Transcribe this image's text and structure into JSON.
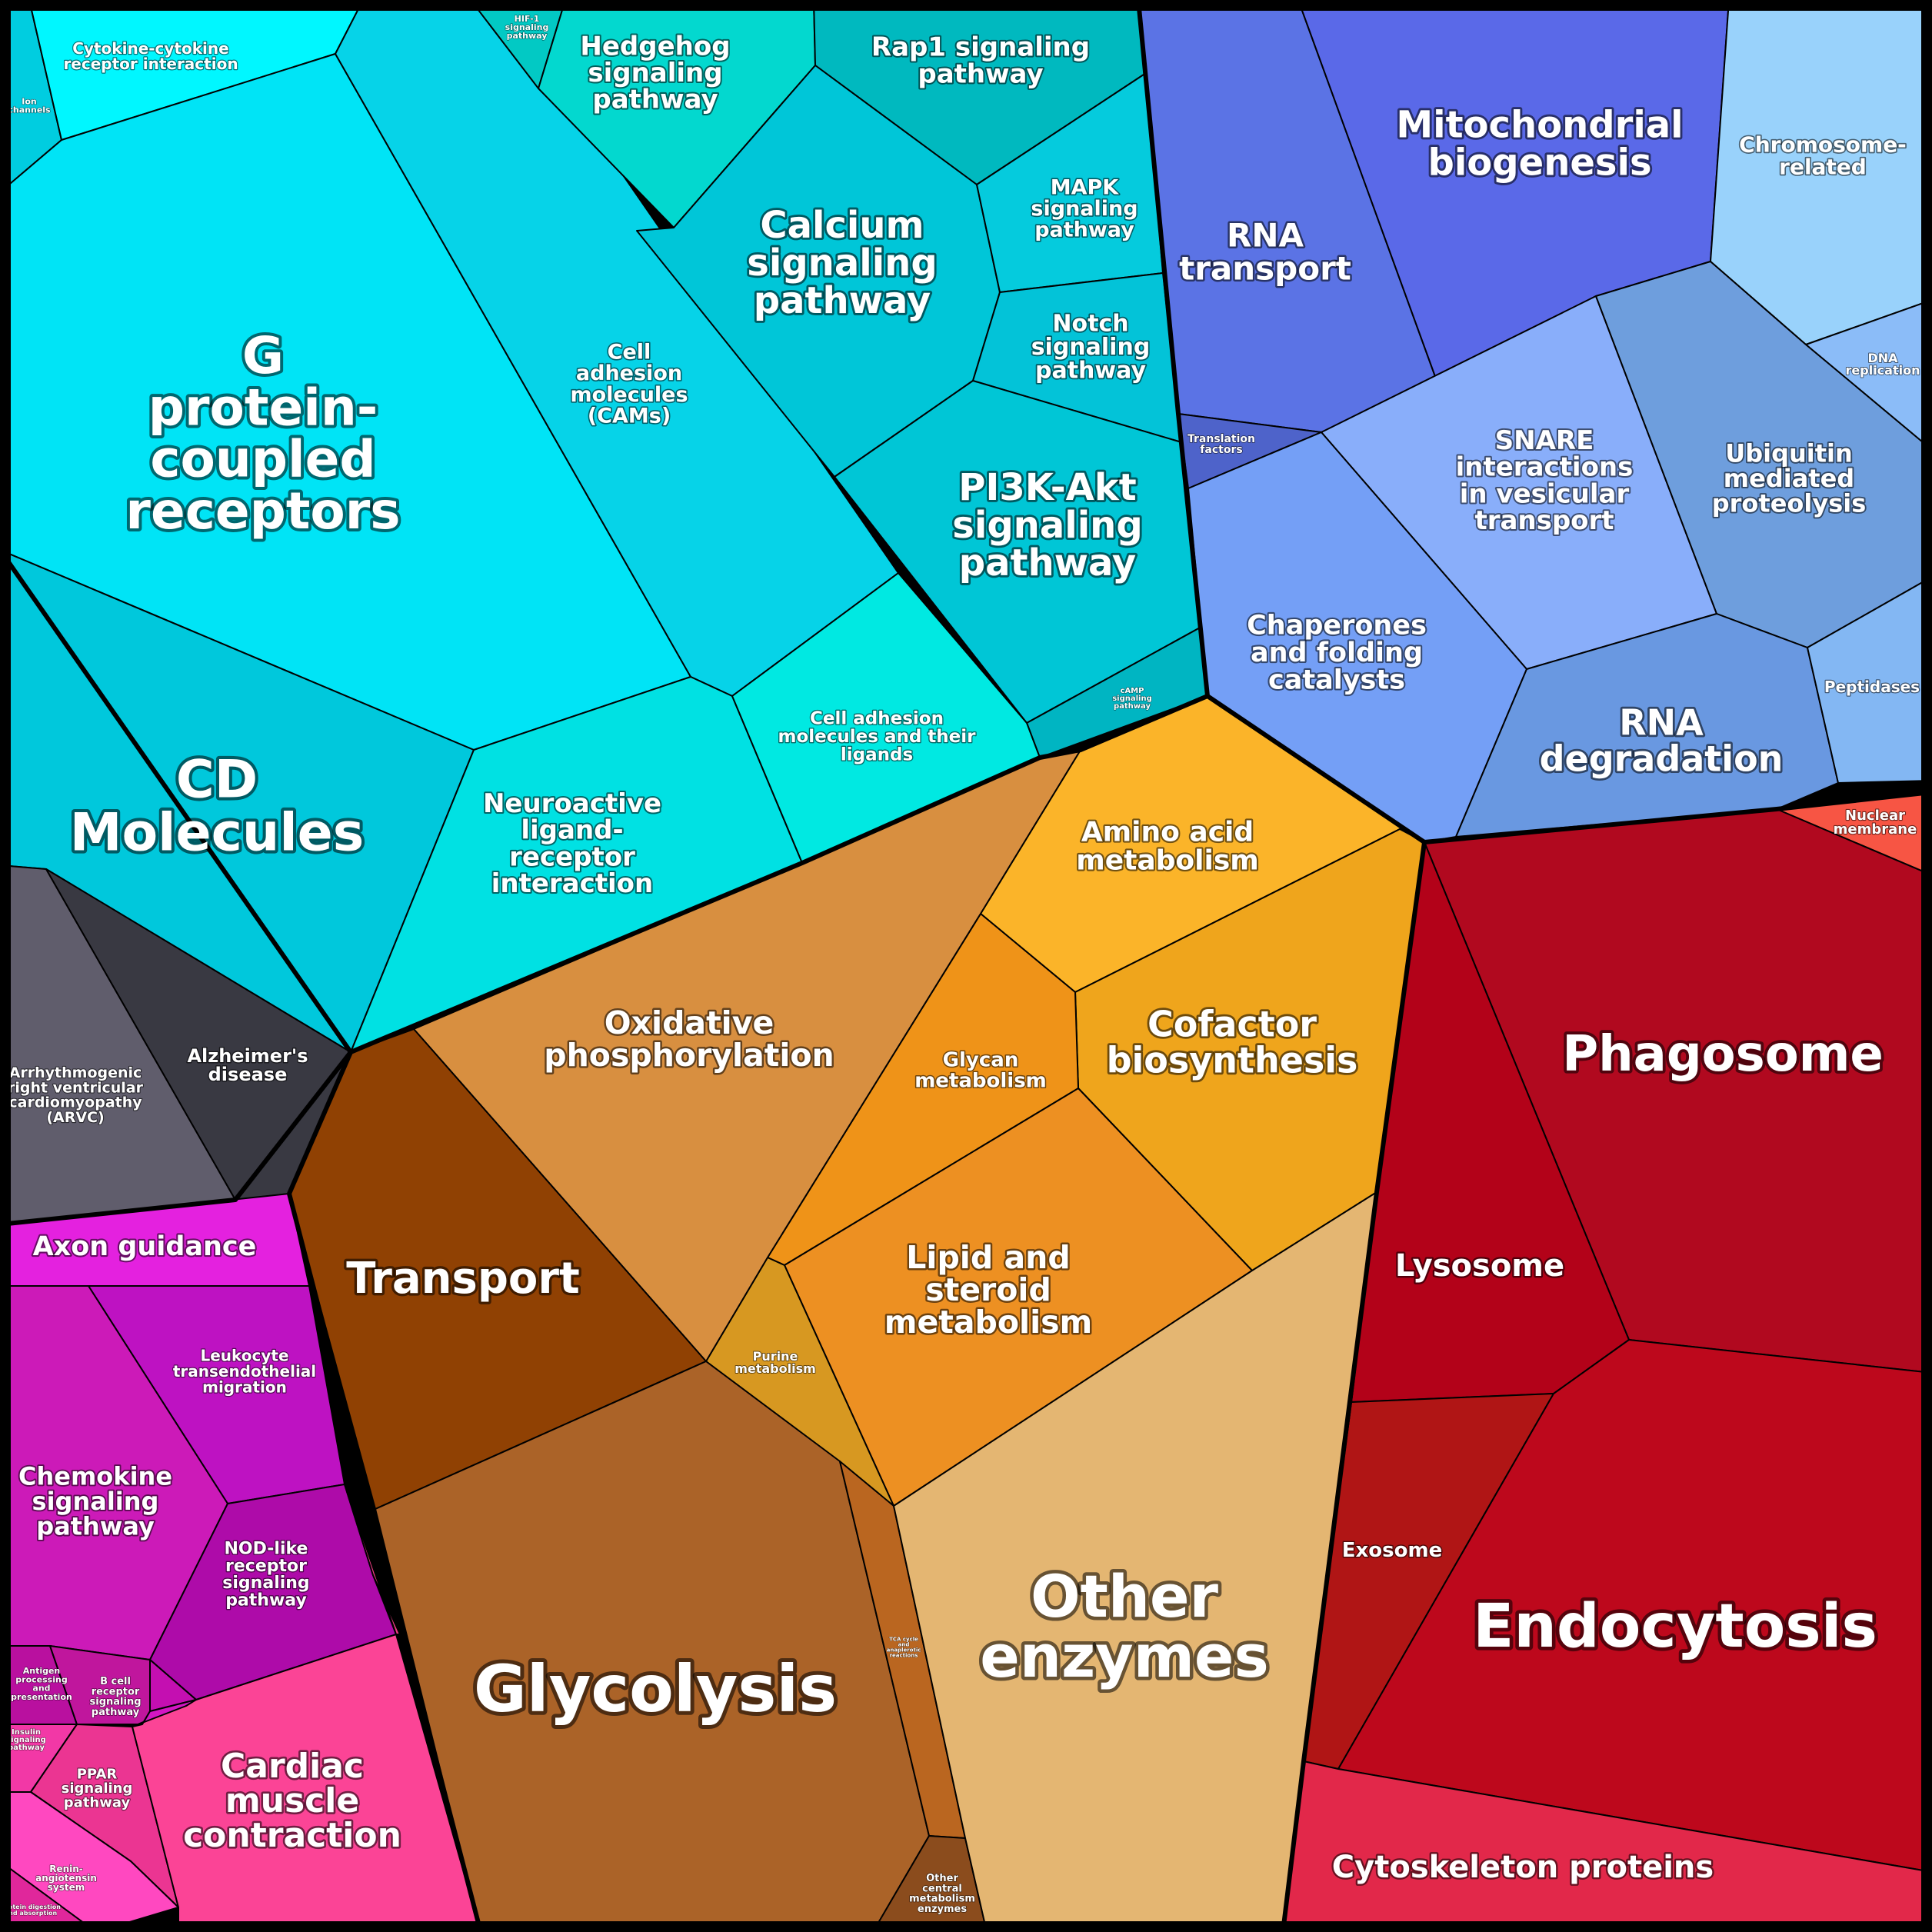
{
  "cells": [
    {
      "id": "ion-channels",
      "label": "Ion channels",
      "color": "#00cde0"
    },
    {
      "id": "cytokine",
      "label": "Cytokine-cytokine receptor interaction",
      "color": "#00f7ff"
    },
    {
      "id": "gpcr",
      "label": "G protein-coupled receptors",
      "color": "#00e4f6"
    },
    {
      "id": "cams",
      "label": "Cell adhesion molecules (CAMs)",
      "color": "#06d3e8"
    },
    {
      "id": "hif1",
      "label": "HIF-1 signaling pathway",
      "color": "#02c9c4"
    },
    {
      "id": "hedgehog",
      "label": "Hedgehog signaling pathway",
      "color": "#03d8cf"
    },
    {
      "id": "rap1",
      "label": "Rap1 signaling pathway",
      "color": "#00b9bf"
    },
    {
      "id": "calcium",
      "label": "Calcium signaling pathway",
      "color": "#00c6d8"
    },
    {
      "id": "mapk",
      "label": "MAPK signaling pathway",
      "color": "#05cbdd"
    },
    {
      "id": "notch",
      "label": "Notch signaling pathway",
      "color": "#03c3d8"
    },
    {
      "id": "pi3k",
      "label": "PI3K-Akt signaling pathway",
      "color": "#00c6d6"
    },
    {
      "id": "camp",
      "label": "cAMP signaling pathway",
      "color": "#00b5c2"
    },
    {
      "id": "cd",
      "label": "CD Molecules",
      "color": "#00c8dc"
    },
    {
      "id": "neuroactive",
      "label": "Neuroactive ligand-receptor interaction",
      "color": "#00e1e3"
    },
    {
      "id": "cam-ligands",
      "label": "Cell adhesion molecules and their ligands",
      "color": "#00e9e2"
    },
    {
      "id": "rna-transport",
      "label": "RNA transport",
      "color": "#5b73e5"
    },
    {
      "id": "mito",
      "label": "Mitochondrial biogenesis",
      "color": "#5a69e8"
    },
    {
      "id": "chromosome",
      "label": "Chromosome-related",
      "color": "#99d2fb"
    },
    {
      "id": "dna-rep",
      "label": "DNA replication",
      "color": "#8bbcf8"
    },
    {
      "id": "translation",
      "label": "Translation factors",
      "color": "#4e63ca"
    },
    {
      "id": "snare",
      "label": "SNARE interactions in vesicular transport",
      "color": "#89aefa"
    },
    {
      "id": "ubiquitin",
      "label": "Ubiquitin mediated proteolysis",
      "color": "#6e9edd"
    },
    {
      "id": "chaperones",
      "label": "Chaperones and folding catalysts",
      "color": "#749ff6"
    },
    {
      "id": "rna-deg",
      "label": "RNA degradation",
      "color": "#6998e1"
    },
    {
      "id": "peptidases",
      "label": "Peptidases",
      "color": "#83b7f3"
    },
    {
      "id": "nuclear",
      "label": "Nuclear membrane",
      "color": "#f75544"
    },
    {
      "id": "phagosome",
      "label": "Phagosome",
      "color": "#b1091f"
    },
    {
      "id": "lysosome",
      "label": "Lysosome",
      "color": "#b30219"
    },
    {
      "id": "exosome",
      "label": "Exosome",
      "color": "#b01515"
    },
    {
      "id": "endocytosis",
      "label": "Endocytosis",
      "color": "#bd081c"
    },
    {
      "id": "cytoskeleton",
      "label": "Cytoskeleton proteins",
      "color": "#e2284a"
    },
    {
      "id": "amino",
      "label": "Amino acid metabolism",
      "color": "#fbb429"
    },
    {
      "id": "cofactor",
      "label": "Cofactor biosynthesis",
      "color": "#efa51c"
    },
    {
      "id": "glycan",
      "label": "Glycan metabolism",
      "color": "#ef9318"
    },
    {
      "id": "lipid",
      "label": "Lipid and steroid metabolism",
      "color": "#ed9022"
    },
    {
      "id": "purine",
      "label": "Purine metabolism",
      "color": "#d79821"
    },
    {
      "id": "oxphos",
      "label": "Oxidative phosphorylation",
      "color": "#d88f40"
    },
    {
      "id": "transport",
      "label": "Transport",
      "color": "#904103"
    },
    {
      "id": "glycolysis",
      "label": "Glycolysis",
      "color": "#ab6328"
    },
    {
      "id": "tca",
      "label": "TCA cycle and anaplerotic reactions",
      "color": "#ba6620"
    },
    {
      "id": "other-central",
      "label": "Other central metabolism enzymes",
      "color": "#8b4c1d"
    },
    {
      "id": "other-enzymes",
      "label": "Other enzymes",
      "color": "#e4b672"
    },
    {
      "id": "arvc",
      "label": "Arrhythmogenic right ventricular cardiomyopathy (ARVC)",
      "color": "#605d6c"
    },
    {
      "id": "alzheimer",
      "label": "Alzheimer's disease",
      "color": "#393942"
    },
    {
      "id": "axon",
      "label": "Axon guidance",
      "color": "#e421df"
    },
    {
      "id": "leukocyte",
      "label": "Leukocyte transendothelial migration",
      "color": "#be12c2"
    },
    {
      "id": "chemokine",
      "label": "Chemokine signaling pathway",
      "color": "#cc1ab8"
    },
    {
      "id": "nod",
      "label": "NOD-like receptor signaling pathway",
      "color": "#ae0ba9"
    },
    {
      "id": "antigen",
      "label": "Antigen processing and presentation",
      "color": "#b9109f"
    },
    {
      "id": "bcell",
      "label": "B cell receptor signaling pathway",
      "color": "#c0169d"
    },
    {
      "id": "insulin",
      "label": "Insulin signaling pathway",
      "color": "#f238a6"
    },
    {
      "id": "ppar",
      "label": "PPAR signaling pathway",
      "color": "#eb3592"
    },
    {
      "id": "renin",
      "label": "Renin-angiotensin system",
      "color": "#ff48c0"
    },
    {
      "id": "protein-digestion",
      "label": "Protein digestion and absorption",
      "color": "#e0279b"
    },
    {
      "id": "cardiac",
      "label": "Cardiac muscle contraction",
      "color": "#fb4496"
    },
    {
      "id": "small-pink",
      "label": "",
      "color": "#ea3d82"
    },
    {
      "id": "small-purple-1",
      "label": "",
      "color": "#c40fb1"
    },
    {
      "id": "small-purple-2",
      "label": "",
      "color": "#d316c3"
    }
  ],
  "labels": {
    "ion-channels": [
      "Ion",
      "channels"
    ],
    "cytokine": [
      "Cytokine-cytokine",
      "receptor interaction"
    ],
    "gpcr": [
      "G",
      "protein-",
      "coupled",
      "receptors"
    ],
    "cams": [
      "Cell",
      "adhesion",
      "molecules",
      "(CAMs)"
    ],
    "hif1": [
      "HIF-1",
      "signaling",
      "pathway"
    ],
    "hedgehog": [
      "Hedgehog",
      "signaling",
      "pathway"
    ],
    "rap1": [
      "Rap1 signaling",
      "pathway"
    ],
    "calcium": [
      "Calcium",
      "signaling",
      "pathway"
    ],
    "mapk": [
      "MAPK",
      "signaling",
      "pathway"
    ],
    "notch": [
      "Notch",
      "signaling",
      "pathway"
    ],
    "pi3k": [
      "PI3K-Akt",
      "signaling",
      "pathway"
    ],
    "camp": [
      "cAMP",
      "signaling",
      "pathway"
    ],
    "cd": [
      "CD",
      "Molecules"
    ],
    "neuroactive": [
      "Neuroactive",
      "ligand-",
      "receptor",
      "interaction"
    ],
    "cam-ligands": [
      "Cell adhesion",
      "molecules and their",
      "ligands"
    ],
    "rna-transport": [
      "RNA",
      "transport"
    ],
    "mito": [
      "Mitochondrial",
      "biogenesis"
    ],
    "chromosome": [
      "Chromosome-",
      "related"
    ],
    "dna-rep": [
      "DNA",
      "replication"
    ],
    "translation": [
      "Translation",
      "factors"
    ],
    "snare": [
      "SNARE",
      "interactions",
      "in vesicular",
      "transport"
    ],
    "ubiquitin": [
      "Ubiquitin",
      "mediated",
      "proteolysis"
    ],
    "chaperones": [
      "Chaperones",
      "and folding",
      "catalysts"
    ],
    "rna-deg": [
      "RNA",
      "degradation"
    ],
    "peptidases": [
      "Peptidases"
    ],
    "nuclear": [
      "Nuclear",
      "membrane"
    ],
    "phagosome": [
      "Phagosome"
    ],
    "lysosome": [
      "Lysosome"
    ],
    "exosome": [
      "Exosome"
    ],
    "endocytosis": [
      "Endocytosis"
    ],
    "cytoskeleton": [
      "Cytoskeleton proteins"
    ],
    "amino": [
      "Amino acid",
      "metabolism"
    ],
    "cofactor": [
      "Cofactor",
      "biosynthesis"
    ],
    "glycan": [
      "Glycan",
      "metabolism"
    ],
    "lipid": [
      "Lipid and",
      "steroid",
      "metabolism"
    ],
    "purine": [
      "Purine",
      "metabolism"
    ],
    "oxphos": [
      "Oxidative",
      "phosphorylation"
    ],
    "transport": [
      "Transport"
    ],
    "glycolysis": [
      "Glycolysis"
    ],
    "tca": [
      "TCA cycle",
      "and",
      "anaplerotic",
      "reactions"
    ],
    "other-central": [
      "Other",
      "central",
      "metabolism",
      "enzymes"
    ],
    "other-enzymes": [
      "Other",
      "enzymes"
    ],
    "arvc": [
      "Arrhythmogenic",
      "right ventricular",
      "cardiomyopathy",
      "(ARVC)"
    ],
    "alzheimer": [
      "Alzheimer's",
      "disease"
    ],
    "axon": [
      "Axon guidance"
    ],
    "leukocyte": [
      "Leukocyte",
      "transendothelial",
      "migration"
    ],
    "chemokine": [
      "Chemokine",
      "signaling",
      "pathway"
    ],
    "nod": [
      "NOD-like",
      "receptor",
      "signaling",
      "pathway"
    ],
    "antigen": [
      "Antigen",
      "processing",
      "and",
      "presentation"
    ],
    "bcell": [
      "B cell",
      "receptor",
      "signaling",
      "pathway"
    ],
    "insulin": [
      "Insulin",
      "signaling",
      "pathway"
    ],
    "ppar": [
      "PPAR",
      "signaling",
      "pathway"
    ],
    "renin": [
      "Renin-",
      "angiotensin",
      "system"
    ],
    "protein-digestion": [
      "Protein digestion",
      "and absorption"
    ],
    "cardiac": [
      "Cardiac",
      "muscle",
      "contraction"
    ]
  }
}
